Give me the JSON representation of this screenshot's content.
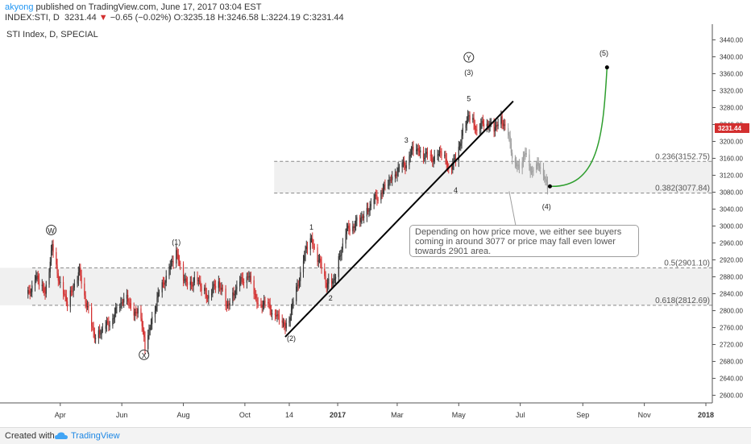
{
  "header": {
    "author": "akyong",
    "published": "published on TradingView.com, June 17, 2017 03:04 EST",
    "symbol": "INDEX:STI, D",
    "last": "3231.44",
    "change": "−0.65 (−0.02%)",
    "ohlc": "O:3235.18  H:3246.58  L:3224.19  C:3231.44"
  },
  "footer": {
    "created_with": "Created with",
    "brand": "TradingView"
  },
  "colors": {
    "up": "#333333",
    "down": "#d32f2f",
    "projection": "#9e9e9e",
    "arrow": "#2e9e2e",
    "price_tag": "#d32f2f",
    "zone": "#f0f0f0"
  },
  "chart_data": {
    "type": "candlestick",
    "title": "STI Index, D, SPECIAL",
    "x_labels": [
      "Apr",
      "Jun",
      "Aug",
      "Oct",
      "14",
      "2017",
      "Mar",
      "May",
      "Jul",
      "Sep",
      "Nov",
      "2018"
    ],
    "y_ticks": [
      2600,
      2640,
      2680,
      2720,
      2760,
      2800,
      2840,
      2880,
      2920,
      2960,
      3000,
      3040,
      3080,
      3120,
      3160,
      3200,
      3240,
      3280,
      3320,
      3360,
      3400,
      3440
    ],
    "ylim": [
      2582,
      3458
    ],
    "last_price": 3231.44,
    "fib_levels": [
      {
        "label": "0.236(3152.75)",
        "value": 3152.75
      },
      {
        "label": "0.382(3077.84)",
        "value": 3077.84
      },
      {
        "label": "0.5(2901.10)",
        "value": 2901.1
      },
      {
        "label": "0.618(2812.69)",
        "value": 2812.69
      }
    ],
    "wave_labels": [
      {
        "text": "W",
        "circled": true,
        "date": "2016-03-23",
        "price": 2985
      },
      {
        "text": "(1)",
        "date": "2016-07-25",
        "price": 2958
      },
      {
        "text": "X",
        "circled": true,
        "date": "2016-06-23",
        "price": 2690
      },
      {
        "text": "(2)",
        "date": "2016-11-16",
        "price": 2731
      },
      {
        "text": "1",
        "date": "2016-12-06",
        "price": 2993
      },
      {
        "text": "2",
        "date": "2016-12-25",
        "price": 2826
      },
      {
        "text": "3",
        "date": "2017-03-10",
        "price": 3199
      },
      {
        "text": "4",
        "date": "2017-04-28",
        "price": 3081
      },
      {
        "text": "5",
        "date": "2017-05-11",
        "price": 3297
      },
      {
        "text": "(3)",
        "date": "2017-05-11",
        "price": 3359
      },
      {
        "text": "Y",
        "circled": true,
        "date": "2017-05-11",
        "price": 3393
      },
      {
        "text": "(4)",
        "date": "2017-07-27",
        "price": 3042
      },
      {
        "text": "(5)",
        "date": "2017-09-22",
        "price": 3405
      }
    ],
    "trendline": [
      {
        "date": "2016-11-10",
        "price": 2738
      },
      {
        "date": "2017-06-24",
        "price": 3295
      }
    ],
    "projected_target": {
      "date": "2017-09-25",
      "price": 3375
    },
    "annotation": "Depending on how price move, we either see buyers coming in around 3077 or price may fall even lower towards 2901 area.",
    "anchors": [
      {
        "date": "2016-02-29",
        "price": 2840
      },
      {
        "date": "2016-03-08",
        "price": 2880
      },
      {
        "date": "2016-03-17",
        "price": 2840
      },
      {
        "date": "2016-03-24",
        "price": 2950
      },
      {
        "date": "2016-04-01",
        "price": 2860
      },
      {
        "date": "2016-04-08",
        "price": 2820
      },
      {
        "date": "2016-04-20",
        "price": 2890
      },
      {
        "date": "2016-04-28",
        "price": 2805
      },
      {
        "date": "2016-05-05",
        "price": 2740
      },
      {
        "date": "2016-05-18",
        "price": 2765
      },
      {
        "date": "2016-05-27",
        "price": 2800
      },
      {
        "date": "2016-06-06",
        "price": 2840
      },
      {
        "date": "2016-06-13",
        "price": 2780
      },
      {
        "date": "2016-06-18",
        "price": 2820
      },
      {
        "date": "2016-06-24",
        "price": 2710
      },
      {
        "date": "2016-07-06",
        "price": 2830
      },
      {
        "date": "2016-07-18",
        "price": 2900
      },
      {
        "date": "2016-07-25",
        "price": 2935
      },
      {
        "date": "2016-08-04",
        "price": 2860
      },
      {
        "date": "2016-08-15",
        "price": 2875
      },
      {
        "date": "2016-08-25",
        "price": 2830
      },
      {
        "date": "2016-09-05",
        "price": 2870
      },
      {
        "date": "2016-09-13",
        "price": 2810
      },
      {
        "date": "2016-09-24",
        "price": 2860
      },
      {
        "date": "2016-10-04",
        "price": 2885
      },
      {
        "date": "2016-10-14",
        "price": 2815
      },
      {
        "date": "2016-10-20",
        "price": 2820
      },
      {
        "date": "2016-10-28",
        "price": 2800
      },
      {
        "date": "2016-11-10",
        "price": 2760
      },
      {
        "date": "2016-11-16",
        "price": 2800
      },
      {
        "date": "2016-11-24",
        "price": 2880
      },
      {
        "date": "2016-12-01",
        "price": 2950
      },
      {
        "date": "2016-12-06",
        "price": 2965
      },
      {
        "date": "2016-12-13",
        "price": 2920
      },
      {
        "date": "2016-12-21",
        "price": 2865
      },
      {
        "date": "2016-12-28",
        "price": 2870
      },
      {
        "date": "2017-01-09",
        "price": 2985
      },
      {
        "date": "2017-01-23",
        "price": 3015
      },
      {
        "date": "2017-02-06",
        "price": 3060
      },
      {
        "date": "2017-02-17",
        "price": 3090
      },
      {
        "date": "2017-02-28",
        "price": 3130
      },
      {
        "date": "2017-03-10",
        "price": 3150
      },
      {
        "date": "2017-03-16",
        "price": 3180
      },
      {
        "date": "2017-03-24",
        "price": 3175
      },
      {
        "date": "2017-04-04",
        "price": 3160
      },
      {
        "date": "2017-04-14",
        "price": 3175
      },
      {
        "date": "2017-04-21",
        "price": 3135
      },
      {
        "date": "2017-04-28",
        "price": 3155
      },
      {
        "date": "2017-05-04",
        "price": 3215
      },
      {
        "date": "2017-05-11",
        "price": 3265
      },
      {
        "date": "2017-05-19",
        "price": 3225
      },
      {
        "date": "2017-05-27",
        "price": 3245
      },
      {
        "date": "2017-06-05",
        "price": 3230
      },
      {
        "date": "2017-06-12",
        "price": 3255
      },
      {
        "date": "2017-06-17",
        "price": 3231
      }
    ],
    "projection_anchors": [
      {
        "date": "2017-06-17",
        "price": 3231
      },
      {
        "date": "2017-06-24",
        "price": 3160
      },
      {
        "date": "2017-06-30",
        "price": 3130
      },
      {
        "date": "2017-07-06",
        "price": 3175
      },
      {
        "date": "2017-07-13",
        "price": 3125
      },
      {
        "date": "2017-07-20",
        "price": 3150
      },
      {
        "date": "2017-07-28",
        "price": 3090
      }
    ]
  }
}
